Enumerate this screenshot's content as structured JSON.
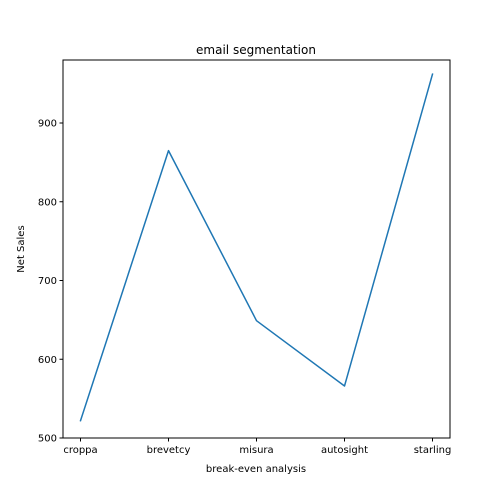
{
  "chart_data": {
    "type": "line",
    "title": "email segmentation",
    "xlabel": "break-even analysis",
    "ylabel": "Net Sales",
    "categories": [
      "croppa",
      "brevetcy",
      "misura",
      "autosight",
      "starling"
    ],
    "series": [
      {
        "values": [
          522,
          865,
          649,
          566,
          962
        ],
        "color": "#1f77b4"
      }
    ],
    "yticks": [
      500,
      600,
      700,
      800,
      900
    ],
    "ylim": [
      500,
      980
    ],
    "grid": false
  }
}
